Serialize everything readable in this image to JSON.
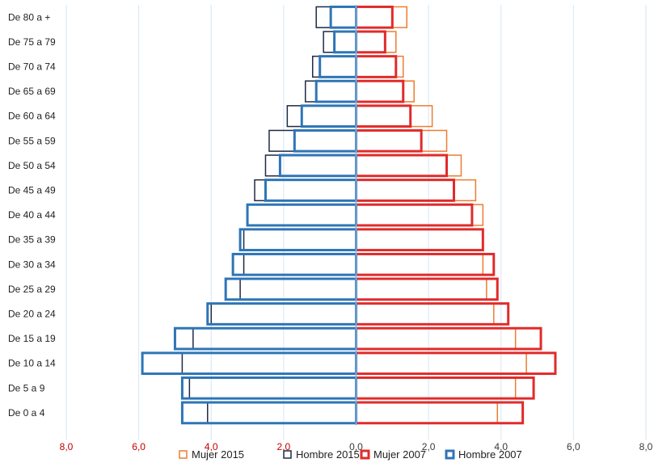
{
  "chart_data": {
    "type": "bar",
    "subtype": "population-pyramid",
    "orientation": "horizontal",
    "title": "",
    "xlabel": "",
    "ylabel": "",
    "xlim": [
      -8,
      8
    ],
    "x_ticks": [
      -8,
      -6,
      -4,
      -2,
      0,
      2,
      4,
      6,
      8
    ],
    "x_tick_labels": [
      "8,0",
      "6,0",
      "4,0",
      "2,0",
      "0,0",
      "2,0",
      "4,0",
      "6,0",
      "8,0"
    ],
    "grid": true,
    "legend_position": "bottom",
    "categories": [
      "De 80 a +",
      "De 75 a 79",
      "De 70 a 74",
      "De 65 a 69",
      "De 60 a 64",
      "De 55 a 59",
      "De 50 a 54",
      "De 45 a 49",
      "De 40 a 44",
      "De 35 a 39",
      "De 30 a 34",
      "De 25 a 29",
      "De 20 a 24",
      "De 15 a 19",
      "De 10 a 14",
      "De 5 a 9",
      "De 0 a 4"
    ],
    "series": [
      {
        "name": "Mujer 2015",
        "side": "right",
        "color": "#ED7D31",
        "values": [
          1.4,
          1.1,
          1.3,
          1.6,
          2.1,
          2.5,
          2.9,
          3.3,
          3.5,
          3.5,
          3.5,
          3.6,
          3.8,
          4.4,
          4.7,
          4.4,
          3.9
        ]
      },
      {
        "name": "Hombre 2015",
        "side": "left",
        "color": "#1F2A44",
        "values": [
          1.1,
          0.9,
          1.2,
          1.4,
          1.9,
          2.4,
          2.5,
          2.8,
          3.0,
          3.1,
          3.1,
          3.2,
          4.0,
          4.5,
          4.8,
          4.6,
          4.1
        ]
      },
      {
        "name": "Mujer 2007",
        "side": "right",
        "color": "#E02B2B",
        "values": [
          1.0,
          0.8,
          1.1,
          1.3,
          1.5,
          1.8,
          2.5,
          2.7,
          3.2,
          3.5,
          3.8,
          3.9,
          4.2,
          5.1,
          5.5,
          4.9,
          4.6
        ]
      },
      {
        "name": "Hombre 2007",
        "side": "left",
        "color": "#2E75B6",
        "values": [
          0.7,
          0.6,
          1.0,
          1.1,
          1.5,
          1.7,
          2.1,
          2.5,
          3.0,
          3.2,
          3.4,
          3.6,
          4.1,
          5.0,
          5.9,
          4.8,
          4.8
        ]
      }
    ]
  },
  "axis_colors": {
    "left_ticks": "#C00000",
    "right_ticks": "#3A3A3A",
    "grid": "#D6E6F5",
    "center_line": "#8FB3D9"
  }
}
